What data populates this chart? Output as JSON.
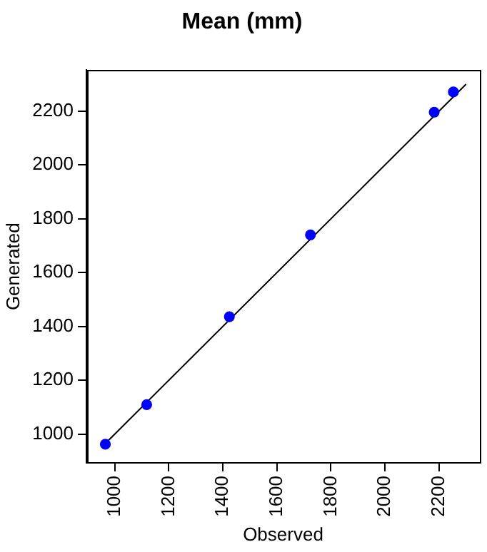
{
  "chart_data": {
    "type": "scatter",
    "title": "Mean (mm)",
    "xlabel": "Observed",
    "ylabel": "Generated",
    "xlim": [
      895,
      2351
    ],
    "ylim": [
      893,
      2352
    ],
    "xticks": [
      1000,
      1200,
      1400,
      1600,
      1800,
      2000,
      2200
    ],
    "yticks": [
      1000,
      1200,
      1400,
      1600,
      1800,
      2000,
      2200
    ],
    "grid": false,
    "legend": false,
    "marker": "circle",
    "series": [
      {
        "type": "scatter",
        "color": "#0000ff",
        "x": [
          965,
          1118,
          1424,
          1724,
          2182,
          2253
        ],
        "values": [
          962,
          1109,
          1436,
          1740,
          2196,
          2271
        ]
      },
      {
        "type": "line",
        "color": "#000000",
        "marker": "none",
        "x": [
          960,
          2300
        ],
        "values": [
          960,
          2300
        ]
      }
    ]
  }
}
